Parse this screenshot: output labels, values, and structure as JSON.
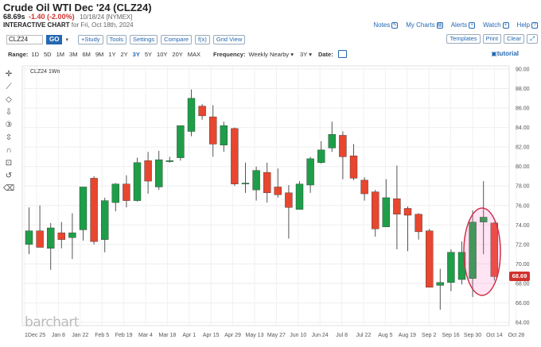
{
  "header": {
    "title": "Crude Oil WTI Dec '24 (CLZ24)",
    "last": "68.69s",
    "change": "-1.40 (-2.00%)",
    "meta": "10/18/24 [NYMEX]",
    "subtitle_bold": "INTERACTIVE CHART",
    "subtitle_rest": " for Fri, Oct 18th, 2024"
  },
  "toplinks": {
    "notes": "Notes",
    "my_charts": "My Charts",
    "alerts": "Alerts",
    "watch": "Watch",
    "help": "Help"
  },
  "toolbar": {
    "symbol_value": "CLZ24",
    "go": "GO",
    "study": "+Study",
    "tools": "Tools",
    "settings": "Settings",
    "compare": "Compare",
    "fx": "f(x)",
    "grid_view": "Grid View",
    "templates": "Templates",
    "print": "Print",
    "clear": "Clear"
  },
  "rangebar": {
    "range_label": "Range:",
    "ranges": [
      "1D",
      "5D",
      "1M",
      "3M",
      "6M",
      "9M",
      "1Y",
      "2Y",
      "3Y",
      "5Y",
      "10Y",
      "20Y",
      "MAX"
    ],
    "active_range": "3Y",
    "frequency_label": "Frequency:",
    "frequency_value": "Weekly Nearby",
    "period_value": "3Y",
    "date_label": "Date:",
    "tutorial": "tutorial"
  },
  "watermark": "barchart",
  "last_price_tag": "68.69",
  "chart_data": {
    "type": "candlestick",
    "legend": "CLZ24 1Wn",
    "frequency": "weekly",
    "ylim": [
      64.0,
      90.0
    ],
    "yticks": [
      "64.00",
      "66.00",
      "68.00",
      "70.00",
      "72.00",
      "74.00",
      "76.00",
      "78.00",
      "80.00",
      "82.00",
      "84.00",
      "86.00",
      "88.00",
      "90.00"
    ],
    "xticks": [
      "1",
      "Dec 25",
      "Jan 8",
      "Jan 22",
      "Feb 5",
      "Feb 19",
      "Mar 4",
      "Mar 18",
      "Apr 1",
      "Apr 15",
      "Apr 29",
      "May 13",
      "May 27",
      "Jun 10",
      "Jun 24",
      "Jul 8",
      "Jul 22",
      "Aug 5",
      "Aug 19",
      "Sep 2",
      "Sep 16",
      "Sep 30",
      "Oct 14",
      "Oct 28"
    ],
    "up_color": "#1e9e48",
    "down_color": "#e8462f",
    "candles": [
      {
        "o": 72.0,
        "h": 75.8,
        "l": 71.0,
        "c": 73.4
      },
      {
        "o": 73.4,
        "h": 76.0,
        "l": 71.8,
        "c": 71.7
      },
      {
        "o": 71.6,
        "h": 74.2,
        "l": 69.4,
        "c": 73.7
      },
      {
        "o": 73.2,
        "h": 74.3,
        "l": 71.6,
        "c": 72.5
      },
      {
        "o": 72.7,
        "h": 75.2,
        "l": 70.5,
        "c": 73.2
      },
      {
        "o": 73.5,
        "h": 77.8,
        "l": 72.4,
        "c": 77.9
      },
      {
        "o": 78.8,
        "h": 79.0,
        "l": 72.0,
        "c": 72.3
      },
      {
        "o": 72.5,
        "h": 76.8,
        "l": 71.2,
        "c": 76.5
      },
      {
        "o": 76.3,
        "h": 78.3,
        "l": 75.4,
        "c": 78.2
      },
      {
        "o": 78.2,
        "h": 79.1,
        "l": 75.8,
        "c": 76.5
      },
      {
        "o": 76.5,
        "h": 80.9,
        "l": 76.4,
        "c": 80.4
      },
      {
        "o": 80.6,
        "h": 81.5,
        "l": 77.2,
        "c": 78.5
      },
      {
        "o": 77.9,
        "h": 81.6,
        "l": 77.6,
        "c": 80.7
      },
      {
        "o": 80.5,
        "h": 81.0,
        "l": 80.4,
        "c": 80.6
      },
      {
        "o": 80.9,
        "h": 84.2,
        "l": 80.6,
        "c": 84.2
      },
      {
        "o": 83.6,
        "h": 87.9,
        "l": 83.1,
        "c": 87.0
      },
      {
        "o": 86.2,
        "h": 86.4,
        "l": 84.8,
        "c": 85.2
      },
      {
        "o": 85.1,
        "h": 86.3,
        "l": 81.0,
        "c": 82.3
      },
      {
        "o": 82.2,
        "h": 84.6,
        "l": 81.5,
        "c": 84.2
      },
      {
        "o": 83.9,
        "h": 84.0,
        "l": 78.0,
        "c": 78.2
      },
      {
        "o": 78.3,
        "h": 80.4,
        "l": 77.3,
        "c": 78.3
      },
      {
        "o": 77.6,
        "h": 80.0,
        "l": 76.5,
        "c": 79.6
      },
      {
        "o": 79.4,
        "h": 80.4,
        "l": 76.3,
        "c": 77.3
      },
      {
        "o": 77.9,
        "h": 79.8,
        "l": 76.8,
        "c": 77.1
      },
      {
        "o": 77.3,
        "h": 78.1,
        "l": 72.6,
        "c": 75.8
      },
      {
        "o": 75.6,
        "h": 78.5,
        "l": 75.6,
        "c": 78.2
      },
      {
        "o": 78.1,
        "h": 81.0,
        "l": 77.3,
        "c": 80.8
      },
      {
        "o": 80.4,
        "h": 82.6,
        "l": 80.3,
        "c": 81.7
      },
      {
        "o": 81.9,
        "h": 84.6,
        "l": 81.5,
        "c": 83.3
      },
      {
        "o": 83.2,
        "h": 83.6,
        "l": 78.7,
        "c": 81.0
      },
      {
        "o": 81.1,
        "h": 82.3,
        "l": 78.6,
        "c": 78.8
      },
      {
        "o": 78.6,
        "h": 78.9,
        "l": 76.5,
        "c": 77.2
      },
      {
        "o": 77.4,
        "h": 77.6,
        "l": 72.8,
        "c": 73.6
      },
      {
        "o": 73.8,
        "h": 78.7,
        "l": 73.8,
        "c": 76.8
      },
      {
        "o": 76.7,
        "h": 80.1,
        "l": 71.5,
        "c": 75.1
      },
      {
        "o": 75.7,
        "h": 75.9,
        "l": 71.3,
        "c": 75.0
      },
      {
        "o": 75.1,
        "h": 75.2,
        "l": 72.5,
        "c": 73.3
      },
      {
        "o": 73.4,
        "h": 73.6,
        "l": 67.7,
        "c": 67.6
      },
      {
        "o": 67.8,
        "h": 69.5,
        "l": 65.3,
        "c": 68.1
      },
      {
        "o": 68.1,
        "h": 71.5,
        "l": 67.2,
        "c": 71.2
      },
      {
        "o": 68.4,
        "h": 72.3,
        "l": 67.9,
        "c": 71.2
      },
      {
        "o": 68.5,
        "h": 75.5,
        "l": 66.6,
        "c": 74.3
      },
      {
        "o": 74.3,
        "h": 78.5,
        "l": 71.0,
        "c": 74.8
      },
      {
        "o": 74.2,
        "h": 74.3,
        "l": 68.3,
        "c": 68.7
      }
    ]
  }
}
